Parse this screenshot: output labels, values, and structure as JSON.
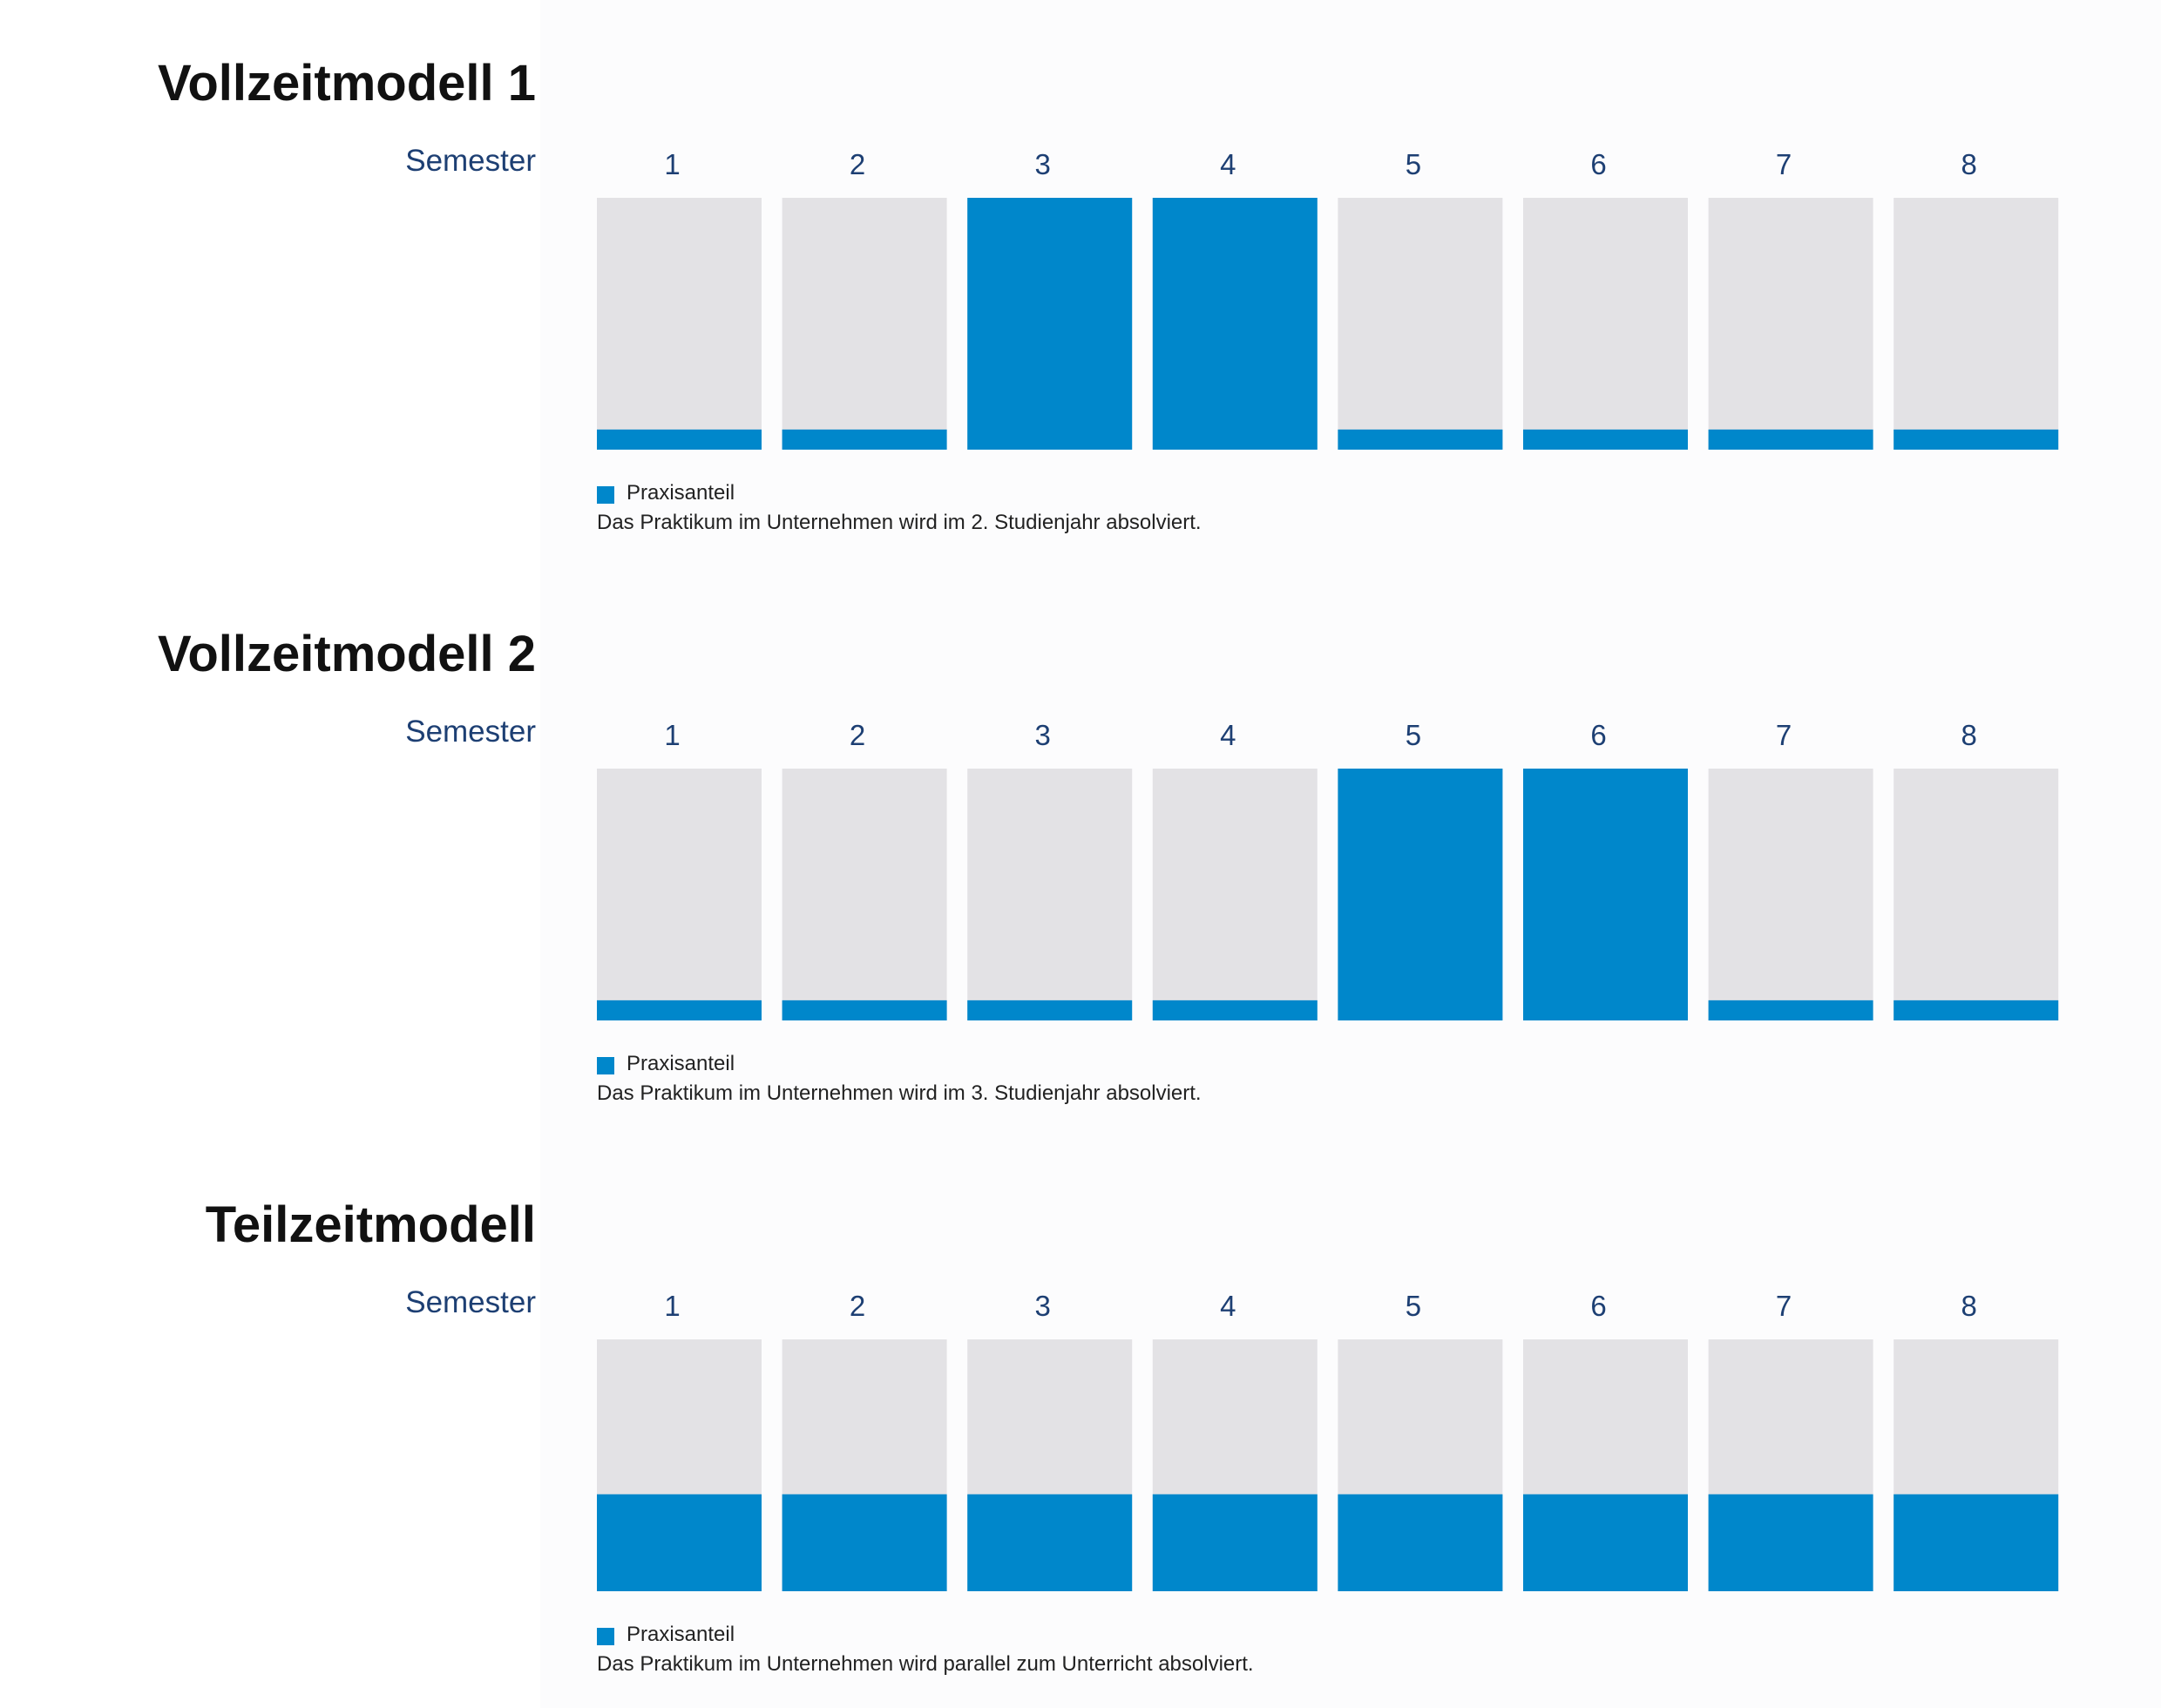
{
  "colors": {
    "praxis": "#0087cb",
    "theorie": "#e3e2e5",
    "semester_number": "#1d3f73"
  },
  "semester_label": "Semester",
  "legend_label": "Praxisanteil",
  "chart_data": [
    {
      "type": "bar",
      "title": "Vollzeitmodell 1",
      "xlabel": "Semester",
      "ylabel": "",
      "categories": [
        "1",
        "2",
        "3",
        "4",
        "5",
        "6",
        "7",
        "8"
      ],
      "series": [
        {
          "name": "Praxisanteil",
          "values": [
            0.08,
            0.08,
            1,
            1,
            0.08,
            0.08,
            0.08,
            0.08
          ]
        }
      ],
      "ylim": [
        0,
        1
      ],
      "grid": false,
      "legend": "bottom-left",
      "caption": "Das Praktikum im Unternehmen wird im 2. Studienjahr absolviert."
    },
    {
      "type": "bar",
      "title": "Vollzeitmodell 2",
      "xlabel": "Semester",
      "ylabel": "",
      "categories": [
        "1",
        "2",
        "3",
        "4",
        "5",
        "6",
        "7",
        "8"
      ],
      "series": [
        {
          "name": "Praxisanteil",
          "values": [
            0.08,
            0.08,
            0.08,
            0.08,
            1,
            1,
            0.08,
            0.08
          ]
        }
      ],
      "ylim": [
        0,
        1
      ],
      "grid": false,
      "legend": "bottom-left",
      "caption": "Das Praktikum im Unternehmen wird im 3. Studienjahr absolviert."
    },
    {
      "type": "bar",
      "title": "Teilzeitmodell",
      "xlabel": "Semester",
      "ylabel": "",
      "categories": [
        "1",
        "2",
        "3",
        "4",
        "5",
        "6",
        "7",
        "8"
      ],
      "series": [
        {
          "name": "Praxisanteil",
          "values": [
            0.385,
            0.385,
            0.385,
            0.385,
            0.385,
            0.385,
            0.385,
            0.385
          ]
        }
      ],
      "ylim": [
        0,
        1
      ],
      "grid": false,
      "legend": "bottom-left",
      "caption": "Das Praktikum im Unternehmen wird parallel zum Unterricht absolviert."
    }
  ]
}
